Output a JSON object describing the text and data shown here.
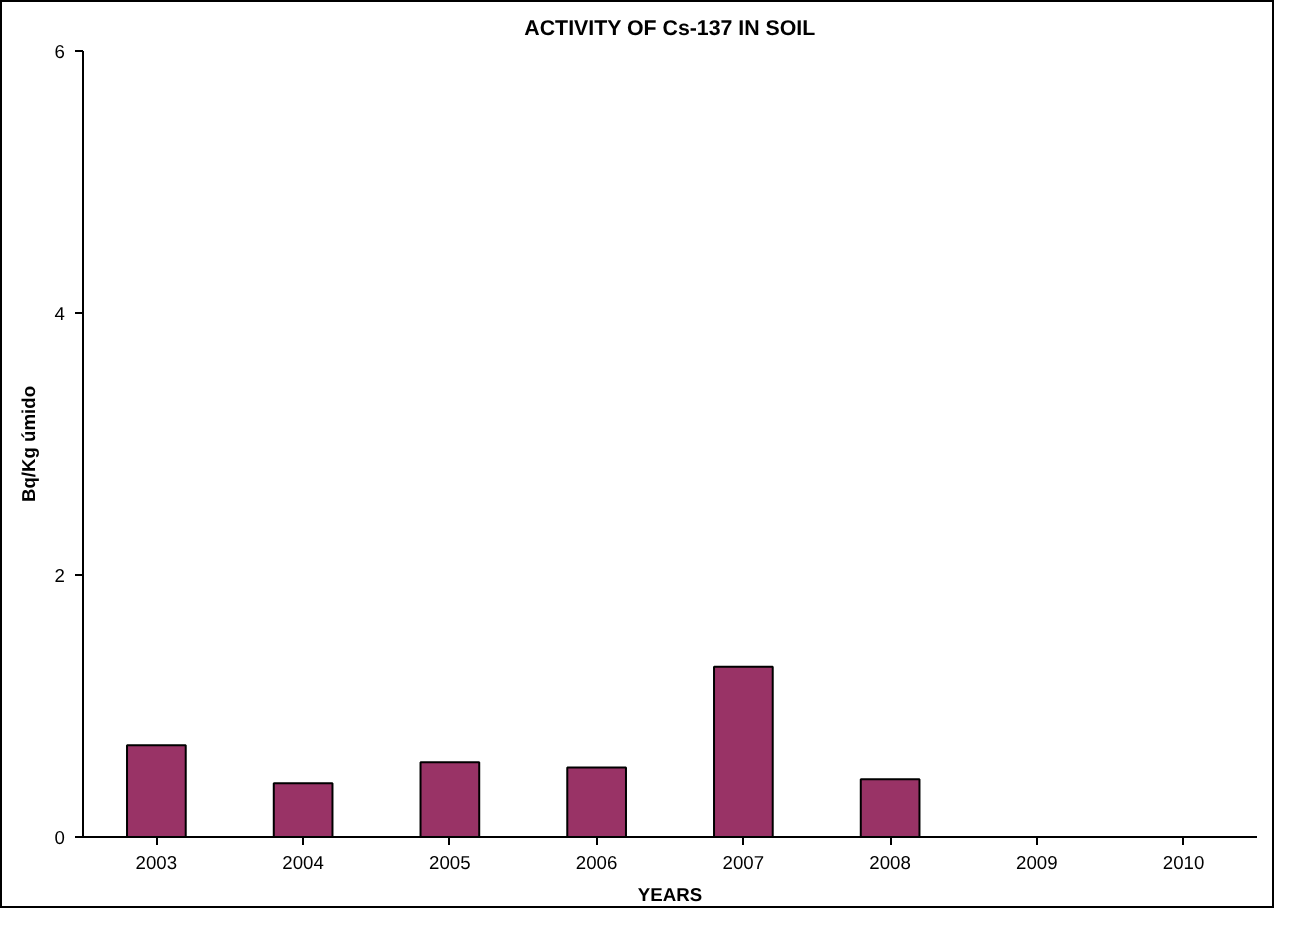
{
  "chart_data": {
    "type": "bar",
    "title": "ACTIVITY OF Cs-137 IN SOIL",
    "xlabel": "YEARS",
    "ylabel": "Bq/Kg úmido",
    "categories": [
      "2003",
      "2004",
      "2005",
      "2006",
      "2007",
      "2008",
      "2009",
      "2010"
    ],
    "values": [
      0.7,
      0.41,
      0.57,
      0.53,
      1.3,
      0.44,
      null,
      null
    ],
    "color": "#993366",
    "ylim": [
      0,
      6
    ],
    "yticks": [
      0,
      2,
      4,
      6
    ],
    "grid": false
  }
}
